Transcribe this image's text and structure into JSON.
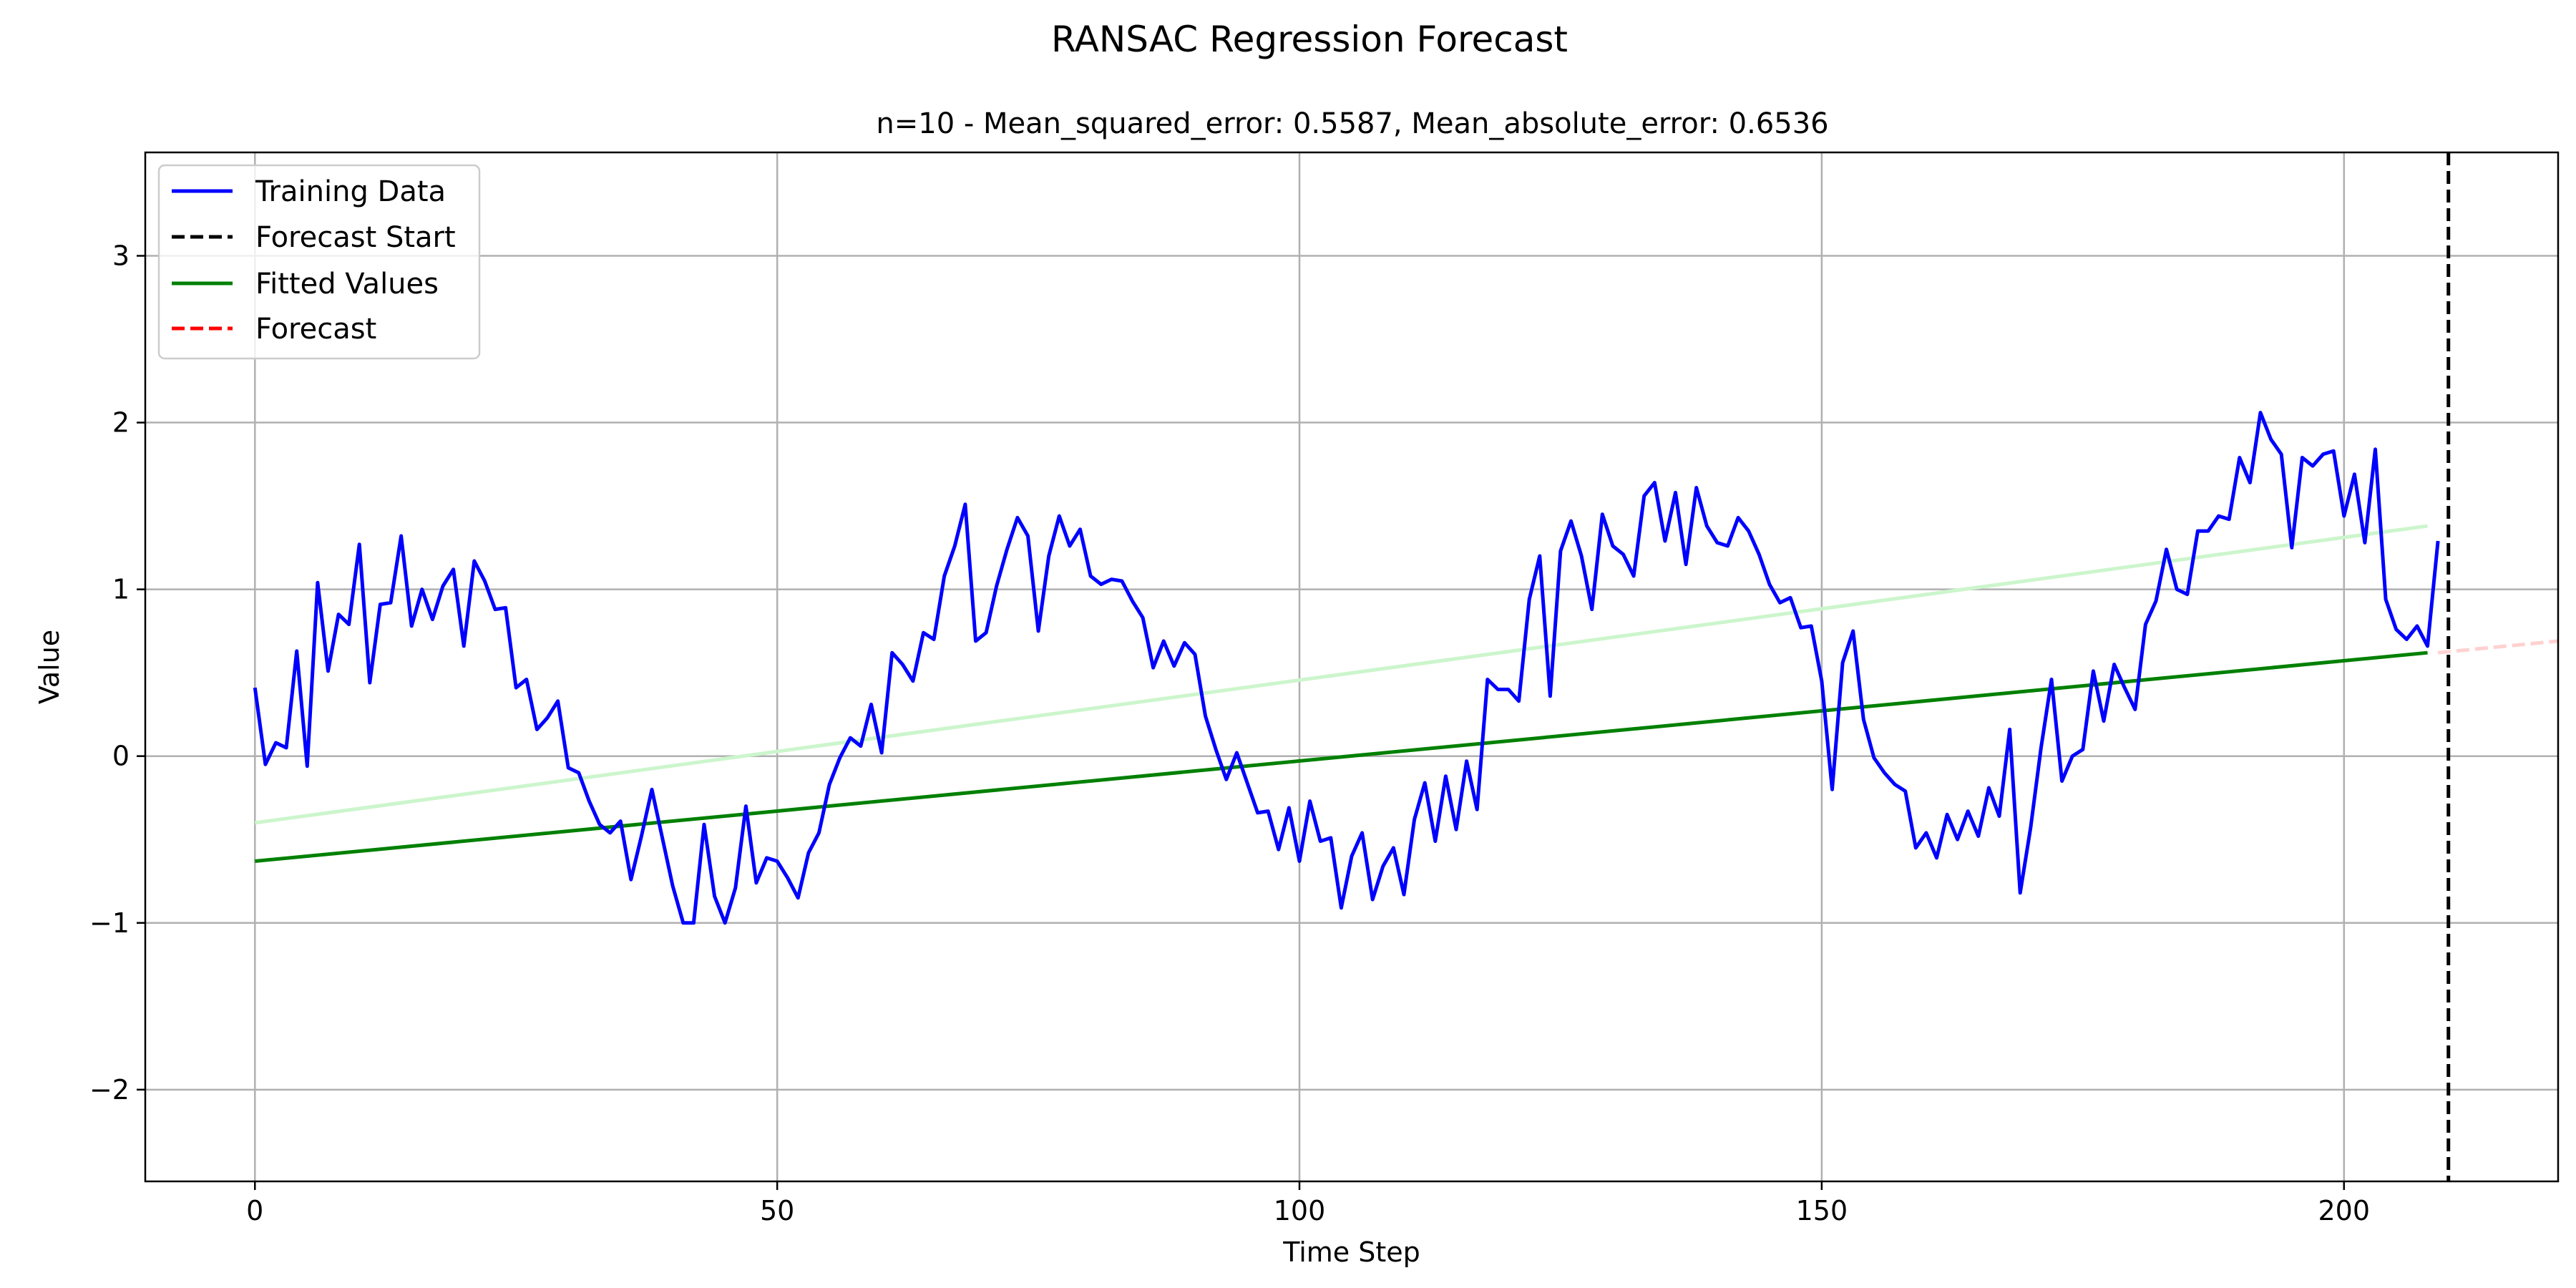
{
  "chart_data": {
    "type": "line",
    "title": "RANSAC Regression Forecast",
    "subtitle": "n=10 - Mean_squared_error: 0.5587, Mean_absolute_error: 0.6536",
    "xlabel": "Time Step",
    "ylabel": "Value",
    "xlim": [
      -10.5,
      220.5
    ],
    "ylim": [
      -2.55,
      3.62
    ],
    "xticks": [
      0,
      50,
      100,
      150,
      200
    ],
    "yticks": [
      -2,
      -1,
      0,
      1,
      2,
      3
    ],
    "xtick_labels": [
      "0",
      "50",
      "100",
      "150",
      "200"
    ],
    "ytick_labels": [
      "−2",
      "−1",
      "0",
      "1",
      "2",
      "3"
    ],
    "grid": true,
    "legend_position": "upper-left",
    "legend": [
      {
        "label": "Training Data",
        "color": "#0000ff",
        "style": "solid"
      },
      {
        "label": "Forecast Start",
        "color": "#000000",
        "style": "dashed"
      },
      {
        "label": "Fitted Values",
        "color": "#008000",
        "style": "solid"
      },
      {
        "label": "Forecast",
        "color": "#ff0000",
        "style": "dashed"
      }
    ],
    "series": [
      {
        "name": "Training Data",
        "color": "#0000ff",
        "x_start": 0,
        "x_step": 1,
        "values": [
          0.41,
          -0.05,
          0.08,
          0.05,
          0.63,
          -0.06,
          1.04,
          0.51,
          0.85,
          0.79,
          1.27,
          0.44,
          0.91,
          0.92,
          1.32,
          0.78,
          1.0,
          0.82,
          1.02,
          1.12,
          0.66,
          1.17,
          1.05,
          0.88,
          0.89,
          0.41,
          0.46,
          0.16,
          0.23,
          0.33,
          -0.07,
          -0.1,
          -0.27,
          -0.41,
          -0.46,
          -0.39,
          -0.74,
          -0.48,
          -0.2,
          -0.49,
          -0.78,
          -1.0,
          -1.0,
          -0.41,
          -0.84,
          -1.0,
          -0.79,
          -0.3,
          -0.76,
          -0.61,
          -0.63,
          -0.73,
          -0.85,
          -0.58,
          -0.46,
          -0.17,
          -0.01,
          0.11,
          0.06,
          0.31,
          0.02,
          0.62,
          0.55,
          0.45,
          0.74,
          0.7,
          1.08,
          1.26,
          1.51,
          0.69,
          0.74,
          1.02,
          1.24,
          1.43,
          1.32,
          0.75,
          1.2,
          1.44,
          1.26,
          1.36,
          1.08,
          1.03,
          1.06,
          1.05,
          0.93,
          0.83,
          0.53,
          0.69,
          0.54,
          0.68,
          0.61,
          0.24,
          0.04,
          -0.14,
          0.02,
          -0.16,
          -0.34,
          -0.33,
          -0.56,
          -0.31,
          -0.63,
          -0.27,
          -0.51,
          -0.49,
          -0.91,
          -0.6,
          -0.46,
          -0.86,
          -0.66,
          -0.55,
          -0.83,
          -0.38,
          -0.16,
          -0.51,
          -0.12,
          -0.44,
          -0.03,
          -0.32,
          0.46,
          0.4,
          0.4,
          0.33,
          0.94,
          1.2,
          0.36,
          1.23,
          1.41,
          1.2,
          0.88,
          1.45,
          1.26,
          1.21,
          1.08,
          1.56,
          1.64,
          1.29,
          1.58,
          1.15,
          1.61,
          1.38,
          1.28,
          1.26,
          1.43,
          1.35,
          1.21,
          1.03,
          0.92,
          0.95,
          0.77,
          0.78,
          0.45,
          -0.2,
          0.56,
          0.75,
          0.22,
          -0.01,
          -0.1,
          -0.17,
          -0.21,
          -0.55,
          -0.46,
          -0.61,
          -0.35,
          -0.5,
          -0.33,
          -0.48,
          -0.19,
          -0.36,
          0.16,
          -0.82,
          -0.43,
          0.05,
          0.46,
          -0.15,
          0.0,
          0.04,
          0.51,
          0.21,
          0.55,
          0.41,
          0.28,
          0.79,
          0.93,
          1.24,
          1.0,
          0.97,
          1.35,
          1.35,
          1.44,
          1.42,
          1.79,
          1.64,
          2.06,
          1.9,
          1.81,
          1.25,
          1.79,
          1.74,
          1.81,
          1.83,
          1.44,
          1.69,
          1.28,
          1.84,
          0.94,
          0.76,
          0.7,
          0.78,
          0.66,
          1.29
        ]
      },
      {
        "name": "Fitted Values",
        "color": "#008000",
        "x": [
          0,
          208
        ],
        "y": [
          -0.63,
          0.62
        ]
      },
      {
        "name": "Forecast",
        "color": "#ff0000",
        "x": [
          209,
          220.5
        ],
        "y": [
          0.62,
          0.69
        ]
      },
      {
        "name": "",
        "color": "#ccf5cc",
        "x": [
          0,
          208
        ],
        "y": [
          -0.4,
          1.38
        ]
      }
    ],
    "forecast_start_x": 210
  }
}
